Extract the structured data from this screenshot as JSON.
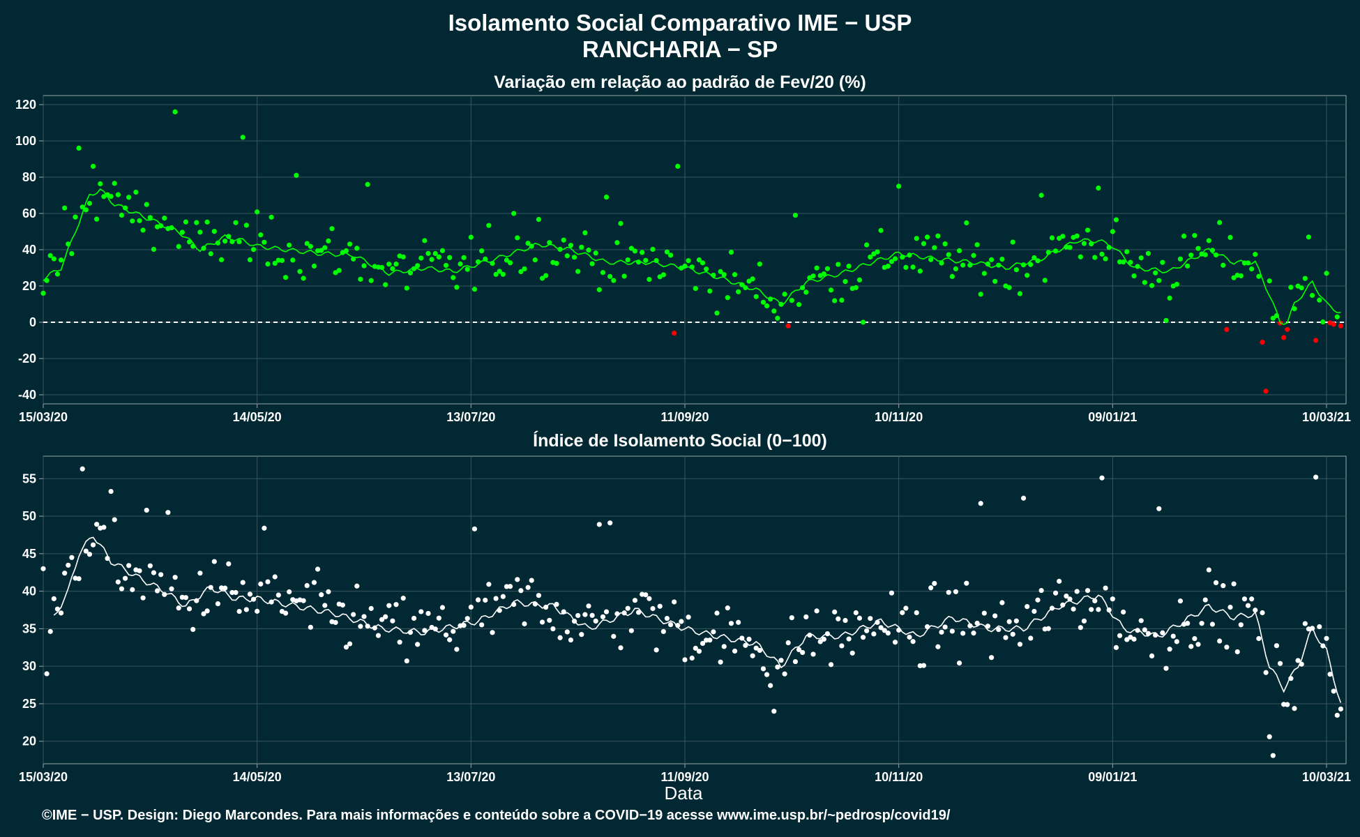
{
  "header": {
    "title_line1": "Isolamento Social Comparativo IME − USP",
    "title_line2": "RANCHARIA − SP"
  },
  "footer": {
    "credit": "©IME − USP. Design: Diego Marcondes. Para mais informações e conteúdo sobre a COVID−19 acesse www.ime.usp.br/~pedrosp/covid19/"
  },
  "colors": {
    "background": "#022833",
    "positive_points": "#00ff00",
    "negative_points": "#ff0000",
    "index_points": "#ffffff",
    "grid": "#3a5560",
    "axis": "#9aa7ab"
  },
  "chart_data": [
    {
      "type": "scatter",
      "title": "Variação em relação ao padrão de Fev/20 (%)",
      "xlabel": "",
      "ylabel": "",
      "x_range": [
        "15/03/20",
        "10/03/21"
      ],
      "ylim": [
        -45,
        125
      ],
      "yticks": [
        -40,
        -20,
        0,
        20,
        40,
        60,
        80,
        100,
        120
      ],
      "xticks": [
        "15/03/20",
        "14/05/20",
        "13/07/20",
        "11/09/20",
        "10/11/20",
        "09/01/21",
        "10/03/21"
      ],
      "reference_line": 0,
      "grid": true,
      "moving_average_anchors": [
        [
          "15/03/20",
          24
        ],
        [
          "20/03/20",
          30
        ],
        [
          "25/03/20",
          55
        ],
        [
          "28/03/20",
          70
        ],
        [
          "31/03/20",
          73
        ],
        [
          "04/04/20",
          65
        ],
        [
          "10/04/20",
          60
        ],
        [
          "16/04/20",
          55
        ],
        [
          "22/04/20",
          50
        ],
        [
          "28/04/20",
          40
        ],
        [
          "05/05/20",
          47
        ],
        [
          "10/05/20",
          45
        ],
        [
          "14/05/20",
          42
        ],
        [
          "22/05/20",
          40
        ],
        [
          "31/05/20",
          38
        ],
        [
          "10/06/20",
          37
        ],
        [
          "20/06/20",
          27
        ],
        [
          "30/06/20",
          30
        ],
        [
          "08/07/20",
          28
        ],
        [
          "20/07/20",
          35
        ],
        [
          "01/08/20",
          43
        ],
        [
          "10/08/20",
          40
        ],
        [
          "20/08/20",
          33
        ],
        [
          "01/09/20",
          33
        ],
        [
          "11/09/20",
          30
        ],
        [
          "20/09/20",
          25
        ],
        [
          "01/10/20",
          18
        ],
        [
          "08/10/20",
          10
        ],
        [
          "15/10/20",
          22
        ],
        [
          "25/10/20",
          27
        ],
        [
          "01/11/20",
          32
        ],
        [
          "10/11/20",
          38
        ],
        [
          "20/11/20",
          35
        ],
        [
          "01/12/20",
          33
        ],
        [
          "10/12/20",
          30
        ],
        [
          "20/12/20",
          35
        ],
        [
          "30/12/20",
          45
        ],
        [
          "05/01/21",
          45
        ],
        [
          "09/01/21",
          42
        ],
        [
          "15/01/21",
          30
        ],
        [
          "25/01/21",
          28
        ],
        [
          "05/02/21",
          40
        ],
        [
          "12/02/21",
          33
        ],
        [
          "18/02/21",
          33
        ],
        [
          "22/02/21",
          15
        ],
        [
          "25/02/21",
          0
        ],
        [
          "27/02/21",
          0
        ],
        [
          "01/03/21",
          10
        ],
        [
          "06/03/21",
          22
        ],
        [
          "10/03/21",
          10
        ],
        [
          "14/03/21",
          5
        ]
      ],
      "points_sample": [
        [
          "15/03/20",
          16
        ],
        [
          "16/03/20",
          23
        ],
        [
          "21/03/20",
          63
        ],
        [
          "25/03/20",
          96
        ],
        [
          "29/03/20",
          86
        ],
        [
          "21/04/20",
          116
        ],
        [
          "10/05/20",
          102
        ],
        [
          "25/05/20",
          81
        ],
        [
          "14/06/20",
          76
        ],
        [
          "30/06/20",
          45
        ],
        [
          "25/07/20",
          60
        ],
        [
          "20/08/20",
          69
        ],
        [
          "08/09/20",
          -6
        ],
        [
          "09/09/20",
          86
        ],
        [
          "10/10/20",
          -2
        ],
        [
          "12/10/20",
          59
        ],
        [
          "31/10/20",
          0
        ],
        [
          "10/11/20",
          75
        ],
        [
          "20/12/20",
          70
        ],
        [
          "05/01/21",
          74
        ],
        [
          "24/01/21",
          1
        ],
        [
          "10/02/21",
          -4
        ],
        [
          "20/02/21",
          -11
        ],
        [
          "21/02/21",
          -38
        ],
        [
          "05/03/21",
          47
        ],
        [
          "07/03/21",
          -10
        ],
        [
          "10/03/21",
          27
        ],
        [
          "14/03/21",
          -2
        ]
      ]
    },
    {
      "type": "scatter",
      "title": "Índice de Isolamento Social (0−100)",
      "xlabel": "Data",
      "ylabel": "",
      "x_range": [
        "15/03/20",
        "10/03/21"
      ],
      "ylim": [
        17,
        58
      ],
      "yticks": [
        20,
        25,
        30,
        35,
        40,
        45,
        50,
        55
      ],
      "xticks": [
        "15/03/20",
        "14/05/20",
        "13/07/20",
        "11/09/20",
        "10/11/20",
        "09/01/21",
        "10/03/21"
      ],
      "grid": true,
      "moving_average_anchors": [
        [
          "18/03/20",
          36.5
        ],
        [
          "22/03/20",
          40
        ],
        [
          "25/03/20",
          45
        ],
        [
          "29/03/20",
          47.5
        ],
        [
          "03/04/20",
          44
        ],
        [
          "10/04/20",
          42
        ],
        [
          "18/04/20",
          40
        ],
        [
          "24/04/20",
          38
        ],
        [
          "01/05/20",
          40.5
        ],
        [
          "08/05/20",
          39
        ],
        [
          "14/05/20",
          39
        ],
        [
          "25/05/20",
          38
        ],
        [
          "05/06/20",
          37
        ],
        [
          "18/06/20",
          35
        ],
        [
          "30/06/20",
          34.5
        ],
        [
          "15/07/20",
          36
        ],
        [
          "25/07/20",
          38.5
        ],
        [
          "05/08/20",
          38
        ],
        [
          "15/08/20",
          35
        ],
        [
          "28/08/20",
          37.5
        ],
        [
          "11/09/20",
          35
        ],
        [
          "20/09/20",
          34
        ],
        [
          "01/10/20",
          33
        ],
        [
          "08/10/20",
          30
        ],
        [
          "15/10/20",
          34
        ],
        [
          "25/10/20",
          34
        ],
        [
          "05/11/20",
          36
        ],
        [
          "15/11/20",
          34
        ],
        [
          "25/11/20",
          36.5
        ],
        [
          "05/12/20",
          35
        ],
        [
          "15/12/20",
          35
        ],
        [
          "25/12/20",
          38
        ],
        [
          "05/01/21",
          39.5
        ],
        [
          "12/01/21",
          35
        ],
        [
          "22/01/21",
          34
        ],
        [
          "05/02/21",
          38
        ],
        [
          "12/02/21",
          36.5
        ],
        [
          "18/02/21",
          37
        ],
        [
          "22/02/21",
          30
        ],
        [
          "26/02/21",
          27
        ],
        [
          "02/03/21",
          30
        ],
        [
          "06/03/21",
          35
        ],
        [
          "10/03/21",
          32
        ],
        [
          "14/03/21",
          25
        ]
      ],
      "points_sample": [
        [
          "15/03/20",
          43
        ],
        [
          "16/03/20",
          29
        ],
        [
          "26/03/20",
          56.3
        ],
        [
          "03/04/20",
          53.3
        ],
        [
          "13/04/20",
          50.8
        ],
        [
          "19/04/20",
          50.5
        ],
        [
          "16/05/20",
          48.4
        ],
        [
          "14/07/20",
          48.3
        ],
        [
          "21/08/20",
          49.1
        ],
        [
          "18/08/20",
          48.9
        ],
        [
          "06/10/20",
          24
        ],
        [
          "03/12/20",
          51.7
        ],
        [
          "15/12/20",
          52.4
        ],
        [
          "06/01/21",
          55.1
        ],
        [
          "22/01/21",
          51
        ],
        [
          "22/02/21",
          20.6
        ],
        [
          "23/02/21",
          18.1
        ],
        [
          "07/03/21",
          55.2
        ],
        [
          "14/03/21",
          24.3
        ]
      ]
    }
  ]
}
